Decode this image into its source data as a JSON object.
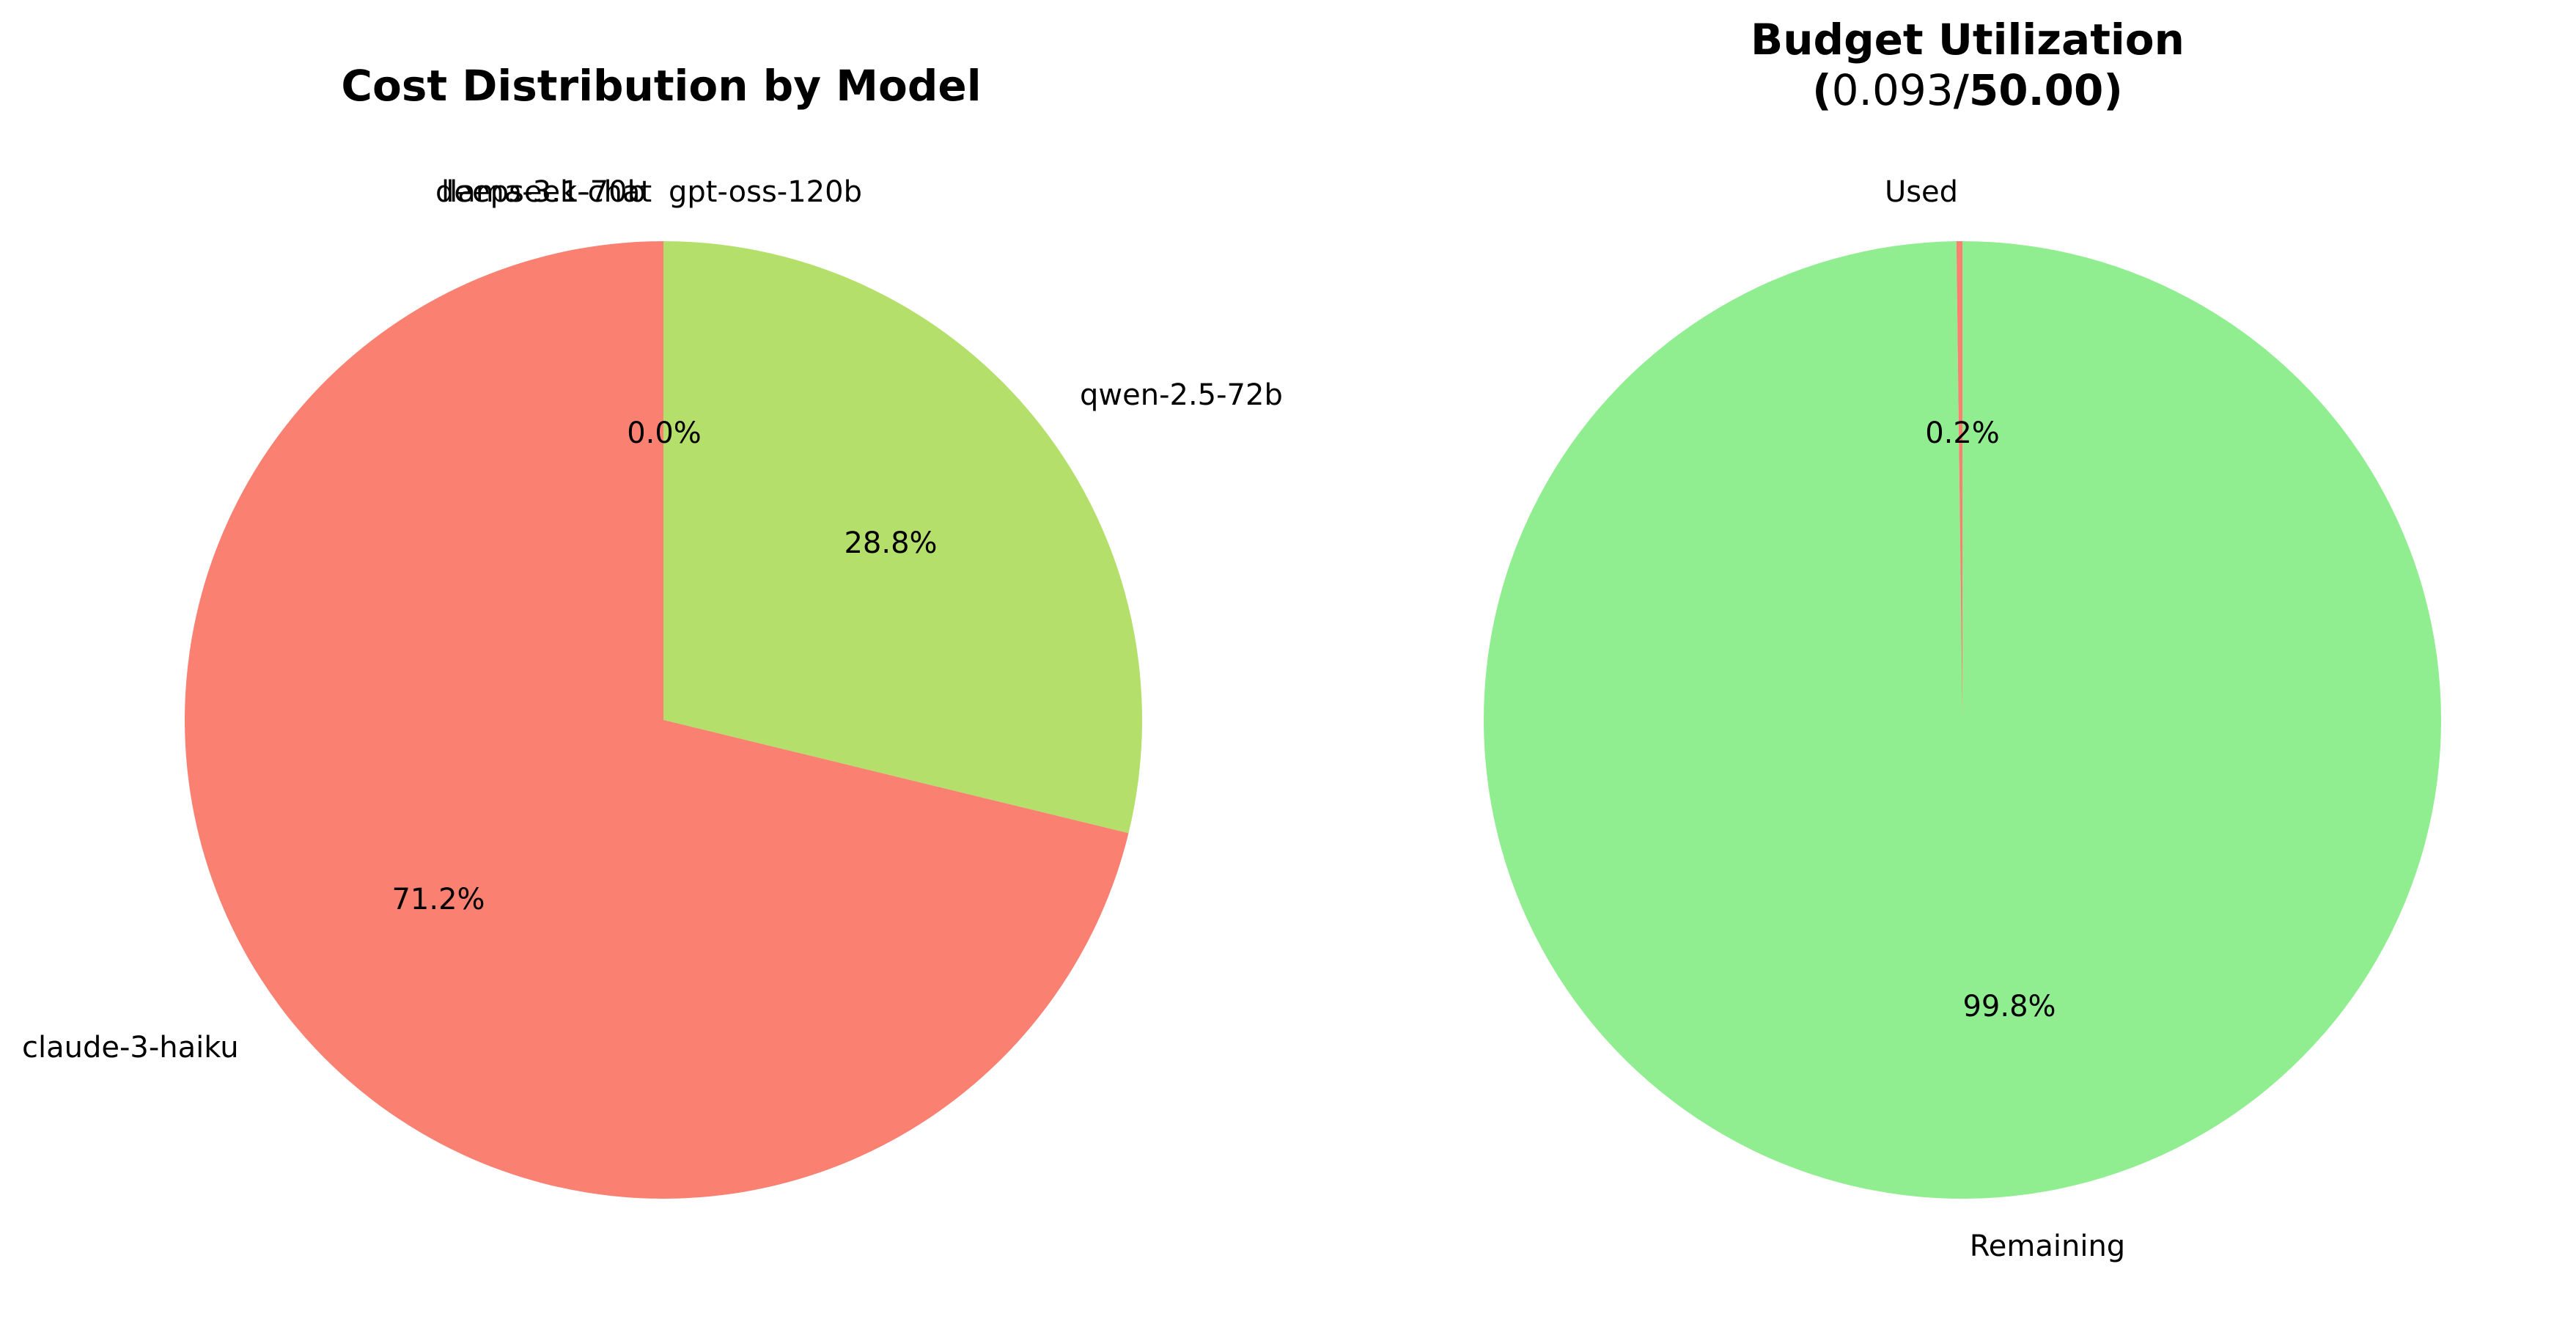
{
  "chart_data": [
    {
      "type": "pie",
      "title": "Cost Distribution by Model",
      "start_angle": "top",
      "direction": "clockwise",
      "slices": [
        {
          "label": "qwen-2.5-72b",
          "value": 28.8,
          "pct_label": "28.8%",
          "color": "#b3df6a"
        },
        {
          "label": "claude-3-haiku",
          "value": 71.2,
          "pct_label": "71.2%",
          "color": "#fa8072"
        },
        {
          "label": "llama-3.1-70b",
          "value": 0.0,
          "pct_label": "0.0%",
          "color": "#87ceeb"
        },
        {
          "label": "deepseek-chat",
          "value": 0.0,
          "pct_label": "0.0%",
          "color": "#dda0dd"
        },
        {
          "label": "gpt-oss-120b",
          "value": 0.0,
          "pct_label": "0.0%",
          "color": "#f0e68c"
        }
      ]
    },
    {
      "type": "pie",
      "title_line1": "Budget Utilization",
      "title_open": "(",
      "title_used": "0.093",
      "title_slash": "/",
      "title_total": "50.00",
      "title_close": ")",
      "start_angle": "top",
      "direction": "clockwise",
      "slices": [
        {
          "label": "Remaining",
          "value": 99.8,
          "pct_label": "99.8%",
          "color": "#90ee90"
        },
        {
          "label": "Used",
          "value": 0.2,
          "pct_label": "0.2%",
          "color": "#fa8072"
        }
      ]
    }
  ]
}
